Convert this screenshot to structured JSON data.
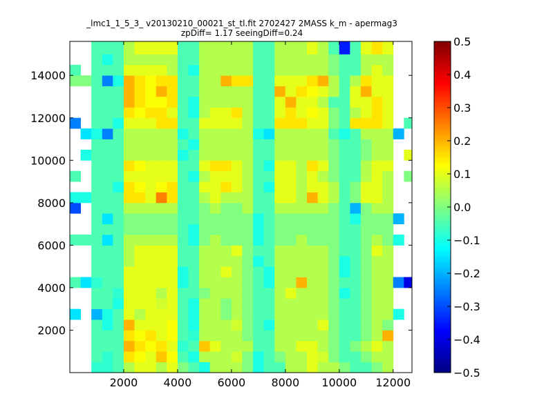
{
  "chart_data": {
    "type": "heatmap",
    "title": "_lmc1_1_5_3_ v20130210_00021_st_tl.fit 2702427 2MASS k_m - apermag3",
    "subtitle": "zpDiff= 1.17 seeingDiff=0.24",
    "xlabel": "",
    "ylabel": "",
    "xlim": [
      0,
      12700
    ],
    "ylim": [
      0,
      15600
    ],
    "x_ticks": [
      2000,
      4000,
      6000,
      8000,
      10000,
      12000
    ],
    "y_ticks": [
      2000,
      4000,
      6000,
      8000,
      10000,
      12000,
      14000
    ],
    "x_tick_labels": [
      "2000",
      "4000",
      "6000",
      "8000",
      "10000",
      "12000"
    ],
    "y_tick_labels": [
      "2000",
      "4000",
      "6000",
      "8000",
      "10000",
      "12000",
      "14000"
    ],
    "colorbar": {
      "colormap": "jet",
      "min": -0.5,
      "max": 0.5,
      "ticks": [
        0.5,
        0.4,
        0.3,
        0.2,
        0.1,
        0.0,
        -0.1,
        -0.2,
        -0.3,
        -0.4,
        -0.5
      ],
      "tick_labels": [
        "0.5",
        "0.4",
        "0.3",
        "0.2",
        "0.1",
        "0.0",
        "−0.1",
        "−0.2",
        "−0.3",
        "−0.4",
        "−0.5"
      ]
    },
    "grid": false,
    "x_edges": [
      0,
      400,
      800,
      1200,
      1600,
      2000,
      2400,
      2800,
      3200,
      3600,
      4000,
      4400,
      4800,
      5200,
      5600,
      6000,
      6400,
      6800,
      7200,
      7600,
      8000,
      8400,
      8800,
      9200,
      9600,
      10000,
      10400,
      10800,
      11200,
      11600,
      12000,
      12400,
      12700
    ],
    "y_edges": [
      0,
      500,
      1000,
      1500,
      2000,
      2500,
      3000,
      3500,
      4000,
      4500,
      5000,
      5500,
      6000,
      6500,
      7000,
      7500,
      8000,
      8500,
      9000,
      9500,
      10000,
      10500,
      11000,
      11500,
      12000,
      12500,
      13000,
      13500,
      14000,
      14500,
      15000,
      15600
    ],
    "values_note": "",
    "values": [
      [
        null,
        null,
        -0.08,
        -0.08,
        -0.05,
        0.05,
        0.1,
        0.1,
        0.05,
        0.1,
        0.0,
        -0.05,
        -0.1,
        0.05,
        0.05,
        0.05,
        0.0,
        -0.1,
        -0.05,
        -0.05,
        0.05,
        0.05,
        0.1,
        0.05,
        0.05,
        0.0,
        -0.05,
        -0.05,
        0.0,
        0.05,
        null,
        null
      ],
      [
        null,
        null,
        -0.05,
        -0.08,
        -0.05,
        0.15,
        0.12,
        0.1,
        0.18,
        0.12,
        -0.05,
        -0.1,
        0.05,
        0.05,
        0.05,
        0.08,
        0.0,
        -0.1,
        -0.05,
        0.0,
        0.05,
        0.05,
        0.1,
        0.08,
        0.0,
        -0.05,
        -0.05,
        0.0,
        0.05,
        0.05,
        null,
        null
      ],
      [
        null,
        null,
        -0.05,
        -0.05,
        -0.05,
        0.2,
        0.15,
        0.12,
        0.15,
        0.1,
        -0.08,
        -0.05,
        0.18,
        0.1,
        0.05,
        0.05,
        0.05,
        -0.05,
        -0.05,
        0.05,
        0.05,
        0.1,
        0.1,
        0.05,
        0.0,
        -0.05,
        0.0,
        0.05,
        0.1,
        0.05,
        null,
        null
      ],
      [
        null,
        null,
        -0.05,
        -0.05,
        -0.05,
        0.15,
        0.12,
        0.15,
        0.1,
        0.12,
        -0.05,
        -0.08,
        0.05,
        0.05,
        0.05,
        0.05,
        0.0,
        -0.05,
        -0.05,
        0.05,
        0.05,
        0.05,
        0.05,
        0.05,
        0.0,
        -0.05,
        -0.05,
        0.0,
        0.05,
        0.2,
        null,
        null
      ],
      [
        null,
        null,
        -0.05,
        -0.1,
        -0.05,
        0.2,
        0.1,
        0.1,
        0.1,
        0.12,
        -0.05,
        -0.1,
        0.05,
        0.05,
        0.05,
        0.08,
        0.0,
        -0.05,
        -0.1,
        0.05,
        0.05,
        0.05,
        0.05,
        0.1,
        0.0,
        -0.05,
        -0.05,
        0.0,
        0.05,
        0.0,
        null,
        null
      ],
      [
        -0.15,
        null,
        -0.2,
        -0.1,
        -0.05,
        0.1,
        0.05,
        0.1,
        0.1,
        0.1,
        -0.05,
        -0.1,
        0.05,
        0.05,
        0.0,
        0.05,
        0.0,
        -0.05,
        -0.05,
        0.05,
        0.05,
        0.05,
        0.05,
        0.05,
        0.0,
        -0.05,
        -0.05,
        0.0,
        0.05,
        0.05,
        -0.1,
        null
      ],
      [
        null,
        null,
        -0.05,
        -0.05,
        -0.1,
        0.1,
        0.1,
        0.1,
        0.08,
        0.1,
        -0.05,
        -0.1,
        0.05,
        0.05,
        0.0,
        0.05,
        0.0,
        -0.05,
        -0.05,
        0.05,
        0.05,
        0.05,
        0.05,
        0.05,
        0.0,
        -0.05,
        -0.05,
        0.0,
        0.05,
        0.05,
        null,
        null
      ],
      [
        null,
        null,
        -0.05,
        -0.05,
        -0.08,
        0.1,
        0.1,
        0.1,
        0.05,
        0.1,
        -0.05,
        -0.05,
        0.0,
        0.05,
        0.05,
        0.05,
        0.0,
        -0.05,
        -0.05,
        0.05,
        0.1,
        0.05,
        0.05,
        0.05,
        0.0,
        -0.1,
        -0.05,
        0.0,
        0.05,
        0.05,
        null,
        null
      ],
      [
        -0.05,
        -0.15,
        -0.08,
        -0.05,
        -0.05,
        0.1,
        0.1,
        0.1,
        0.1,
        0.1,
        -0.1,
        -0.05,
        0.05,
        0.05,
        0.05,
        0.05,
        0.0,
        -0.05,
        -0.1,
        0.05,
        0.05,
        0.2,
        0.05,
        0.05,
        0.0,
        -0.05,
        -0.05,
        0.0,
        0.05,
        0.05,
        -0.25,
        -0.4
      ],
      [
        null,
        null,
        -0.05,
        -0.05,
        -0.05,
        0.1,
        0.1,
        0.1,
        0.1,
        0.1,
        -0.1,
        -0.05,
        0.05,
        0.05,
        0.1,
        0.05,
        0.0,
        -0.05,
        -0.1,
        0.05,
        0.05,
        0.05,
        0.05,
        0.05,
        0.0,
        -0.1,
        -0.05,
        0.0,
        0.05,
        0.05,
        null,
        null
      ],
      [
        null,
        null,
        -0.05,
        -0.05,
        -0.05,
        0.05,
        0.1,
        0.1,
        0.1,
        0.1,
        -0.05,
        -0.05,
        0.05,
        0.05,
        0.05,
        0.05,
        0.0,
        -0.1,
        -0.05,
        0.05,
        0.05,
        0.05,
        0.05,
        0.05,
        0.0,
        -0.1,
        -0.05,
        0.0,
        0.05,
        0.05,
        null,
        null
      ],
      [
        null,
        null,
        -0.05,
        -0.05,
        -0.05,
        0.05,
        0.1,
        0.1,
        0.1,
        0.1,
        -0.05,
        -0.05,
        0.05,
        0.05,
        0.05,
        0.1,
        0.0,
        -0.05,
        -0.05,
        0.05,
        0.05,
        0.05,
        0.05,
        0.05,
        0.0,
        -0.05,
        -0.05,
        0.0,
        0.1,
        0.05,
        null,
        null
      ],
      [
        -0.05,
        -0.05,
        -0.05,
        -0.15,
        -0.05,
        0.05,
        0.05,
        0.05,
        0.05,
        0.05,
        -0.05,
        -0.1,
        0.0,
        0.05,
        0.0,
        0.0,
        0.0,
        -0.1,
        -0.05,
        0.0,
        0.0,
        0.05,
        0.0,
        0.0,
        0.0,
        -0.05,
        -0.05,
        0.0,
        0.05,
        0.0,
        -0.1,
        null
      ],
      [
        null,
        null,
        -0.05,
        -0.05,
        -0.05,
        0.0,
        0.0,
        0.0,
        0.0,
        0.0,
        -0.05,
        -0.1,
        0.0,
        0.0,
        0.0,
        0.0,
        0.0,
        -0.1,
        -0.05,
        0.0,
        0.0,
        0.0,
        0.0,
        0.0,
        0.0,
        -0.05,
        -0.05,
        0.0,
        0.0,
        0.0,
        null,
        null
      ],
      [
        null,
        null,
        -0.05,
        -0.15,
        -0.05,
        0.0,
        0.0,
        0.0,
        0.0,
        0.0,
        -0.05,
        -0.05,
        0.0,
        0.0,
        0.0,
        0.0,
        0.0,
        -0.1,
        -0.05,
        0.0,
        0.0,
        0.0,
        0.0,
        0.0,
        0.0,
        -0.05,
        -0.1,
        0.0,
        0.0,
        0.0,
        -0.2,
        null
      ],
      [
        -0.3,
        null,
        -0.05,
        -0.05,
        -0.05,
        0.05,
        0.05,
        0.05,
        0.05,
        0.05,
        -0.05,
        -0.05,
        0.0,
        0.05,
        0.0,
        0.0,
        0.05,
        -0.05,
        -0.05,
        0.05,
        0.05,
        0.05,
        0.05,
        0.05,
        0.0,
        -0.05,
        -0.2,
        0.0,
        0.05,
        0.05,
        null,
        null
      ],
      [
        -0.1,
        -0.1,
        -0.05,
        -0.05,
        -0.05,
        0.15,
        0.15,
        0.1,
        0.25,
        0.15,
        -0.05,
        -0.05,
        0.05,
        0.1,
        0.05,
        0.05,
        0.05,
        -0.05,
        -0.05,
        0.1,
        0.1,
        0.05,
        0.2,
        0.1,
        0.05,
        -0.05,
        0.0,
        0.1,
        0.1,
        0.05,
        null,
        null
      ],
      [
        null,
        null,
        -0.05,
        -0.05,
        -0.1,
        0.15,
        0.12,
        0.1,
        0.12,
        0.15,
        -0.05,
        -0.05,
        0.1,
        0.1,
        0.15,
        0.1,
        0.05,
        -0.05,
        -0.1,
        0.1,
        0.1,
        0.05,
        0.1,
        0.1,
        0.05,
        -0.05,
        0.0,
        0.1,
        0.1,
        0.05,
        null,
        null
      ],
      [
        -0.05,
        null,
        -0.05,
        -0.05,
        -0.05,
        0.1,
        0.1,
        0.1,
        0.1,
        0.1,
        -0.05,
        -0.1,
        0.05,
        0.1,
        0.1,
        0.1,
        0.05,
        -0.05,
        -0.05,
        0.1,
        0.1,
        0.05,
        0.1,
        0.05,
        0.0,
        -0.05,
        -0.05,
        0.05,
        0.1,
        0.05,
        null,
        0.0
      ],
      [
        null,
        null,
        -0.05,
        -0.05,
        -0.05,
        0.15,
        0.12,
        0.1,
        0.1,
        0.1,
        -0.05,
        -0.05,
        0.1,
        0.15,
        0.15,
        0.1,
        0.05,
        -0.05,
        -0.1,
        0.1,
        0.1,
        0.05,
        0.15,
        0.1,
        0.0,
        -0.05,
        -0.05,
        0.05,
        0.1,
        0.1,
        null,
        null
      ],
      [
        null,
        -0.1,
        -0.05,
        -0.05,
        -0.05,
        0.05,
        0.05,
        0.05,
        0.05,
        0.05,
        -0.1,
        -0.05,
        0.05,
        0.05,
        0.05,
        0.05,
        0.05,
        -0.05,
        -0.05,
        0.05,
        0.05,
        0.05,
        0.05,
        0.05,
        0.0,
        -0.05,
        -0.05,
        0.0,
        0.05,
        0.05,
        null,
        0.1
      ],
      [
        null,
        null,
        -0.05,
        -0.05,
        -0.05,
        0.05,
        0.05,
        0.05,
        0.05,
        0.05,
        -0.05,
        -0.1,
        0.05,
        0.05,
        0.05,
        0.05,
        0.05,
        -0.05,
        -0.05,
        0.05,
        0.05,
        0.05,
        0.05,
        0.05,
        0.0,
        -0.05,
        -0.05,
        0.0,
        0.05,
        0.05,
        null,
        null
      ],
      [
        null,
        -0.15,
        -0.1,
        -0.25,
        -0.05,
        0.05,
        0.05,
        0.05,
        0.05,
        0.05,
        -0.1,
        -0.05,
        0.05,
        0.05,
        0.05,
        0.05,
        0.05,
        -0.1,
        -0.15,
        0.05,
        0.05,
        0.05,
        0.05,
        0.05,
        -0.05,
        -0.1,
        -0.05,
        0.05,
        0.05,
        0.05,
        -0.2,
        null
      ],
      [
        -0.25,
        null,
        -0.05,
        -0.05,
        -0.1,
        0.1,
        0.1,
        0.1,
        0.15,
        0.15,
        -0.05,
        -0.05,
        0.1,
        0.1,
        0.1,
        0.1,
        0.05,
        -0.05,
        -0.05,
        0.15,
        0.15,
        0.15,
        0.1,
        0.1,
        0.0,
        -0.05,
        0.15,
        0.15,
        0.15,
        0.1,
        null,
        -0.05
      ],
      [
        null,
        null,
        -0.05,
        -0.05,
        -0.05,
        0.15,
        0.12,
        0.15,
        0.15,
        0.1,
        -0.05,
        -0.1,
        0.05,
        0.1,
        0.1,
        0.15,
        0.05,
        -0.05,
        -0.05,
        0.1,
        0.15,
        0.1,
        0.12,
        0.1,
        0.0,
        -0.05,
        0.05,
        0.1,
        0.15,
        0.1,
        null,
        null
      ],
      [
        null,
        null,
        -0.05,
        -0.05,
        -0.05,
        0.2,
        0.15,
        0.12,
        0.12,
        0.15,
        -0.05,
        -0.1,
        0.05,
        0.05,
        0.05,
        0.05,
        0.05,
        -0.05,
        -0.05,
        0.1,
        0.2,
        0.1,
        0.1,
        0.05,
        -0.05,
        -0.05,
        0.1,
        0.1,
        0.15,
        0.1,
        null,
        null
      ],
      [
        null,
        null,
        -0.05,
        -0.05,
        -0.05,
        0.2,
        0.15,
        0.12,
        0.2,
        0.15,
        -0.05,
        -0.05,
        0.05,
        0.05,
        0.05,
        0.05,
        0.05,
        -0.05,
        -0.05,
        0.2,
        0.1,
        0.15,
        0.12,
        0.1,
        0.05,
        -0.05,
        0.1,
        0.2,
        0.1,
        0.1,
        null,
        null
      ],
      [
        0.0,
        0.0,
        -0.05,
        -0.25,
        -0.1,
        0.2,
        0.15,
        0.12,
        0.15,
        0.15,
        -0.05,
        -0.05,
        0.05,
        0.05,
        0.2,
        0.15,
        0.15,
        -0.05,
        -0.05,
        0.1,
        0.1,
        0.1,
        0.15,
        0.2,
        0.05,
        -0.05,
        0.05,
        0.15,
        0.1,
        0.1,
        null,
        null
      ],
      [
        -0.05,
        null,
        -0.05,
        -0.05,
        -0.05,
        0.1,
        0.1,
        0.1,
        0.1,
        0.05,
        -0.05,
        -0.1,
        0.05,
        0.05,
        0.05,
        0.05,
        0.05,
        -0.05,
        -0.05,
        0.05,
        0.05,
        0.05,
        0.05,
        0.05,
        0.0,
        -0.05,
        -0.05,
        0.05,
        0.1,
        0.05,
        null,
        null
      ],
      [
        null,
        null,
        -0.05,
        -0.1,
        -0.05,
        0.05,
        0.05,
        0.05,
        0.05,
        0.05,
        -0.05,
        -0.05,
        0.05,
        0.05,
        0.05,
        0.05,
        0.05,
        -0.05,
        -0.05,
        0.05,
        0.05,
        0.05,
        0.05,
        0.05,
        0.0,
        -0.05,
        -0.05,
        0.05,
        0.05,
        0.05,
        null,
        null
      ],
      [
        null,
        null,
        -0.05,
        -0.05,
        -0.05,
        0.05,
        0.1,
        0.1,
        0.1,
        0.1,
        -0.05,
        -0.05,
        0.05,
        0.05,
        0.05,
        0.05,
        0.05,
        -0.05,
        -0.05,
        0.05,
        0.05,
        0.05,
        0.1,
        0.05,
        -0.05,
        -0.35,
        -0.05,
        0.1,
        0.15,
        0.1,
        null,
        null
      ]
    ]
  }
}
